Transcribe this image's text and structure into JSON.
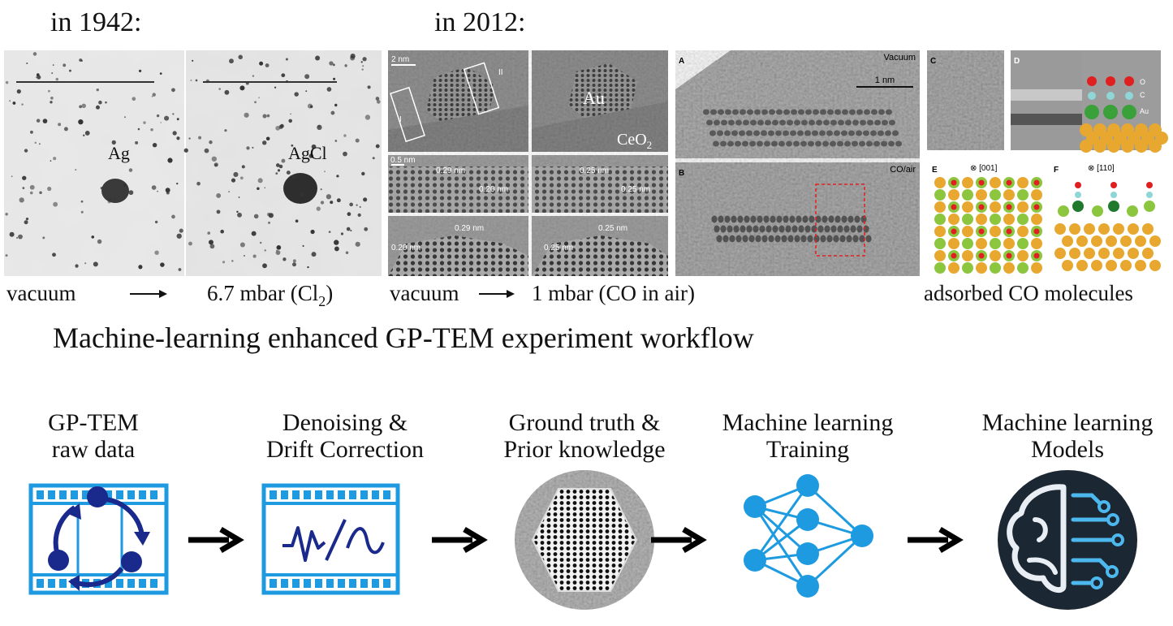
{
  "top": {
    "era_1942": "in 1942:",
    "era_2012": "in 2012:",
    "panel_1942": {
      "left_label": "Ag",
      "right_label": "AgCl"
    },
    "caption_1942": {
      "start": "vacuum",
      "end": [
        "6.7 mbar (Cl",
        "2",
        ")"
      ]
    },
    "panel_2012": {
      "scale": "2 nm",
      "box_1": "I",
      "box_2": "II",
      "particle": "Au",
      "support": [
        "CeO",
        "2"
      ],
      "scale_small": "0.5 nm",
      "left_mid": [
        "0.29 nm",
        "0.20 nm"
      ],
      "left_low": [
        "0.29 nm",
        "0.20 nm"
      ],
      "right_mid": [
        "0.25 nm",
        "0.25 nm"
      ],
      "right_low": [
        "0.25 nm",
        "0.25 nm"
      ]
    },
    "panel_a": {
      "letter": "A",
      "condition": "Vacuum",
      "scale": "1 nm"
    },
    "panel_b": {
      "letter": "B",
      "condition": "CO/air"
    },
    "panel_c": {
      "letter": "C"
    },
    "panel_d": {
      "letter": "D",
      "atoms": [
        "O",
        "C",
        "Au"
      ]
    },
    "panel_e": {
      "letter": "E",
      "axis": "⊗ [001]"
    },
    "panel_f": {
      "letter": "F",
      "axis": "⊗ [110]"
    },
    "caption_2012": {
      "start": "vacuum",
      "end": "1 mbar (CO in air)"
    },
    "caption_models": "adsorbed CO molecules"
  },
  "workflow": {
    "title": "Machine-learning enhanced GP-TEM experiment workflow",
    "steps": [
      [
        "GP-TEM",
        "raw data"
      ],
      [
        "Denoising &",
        "Drift Correction"
      ],
      [
        "Ground truth &",
        "Prior knowledge"
      ],
      [
        "Machine learning",
        "Training"
      ],
      [
        "Machine learning",
        "Models"
      ]
    ]
  }
}
